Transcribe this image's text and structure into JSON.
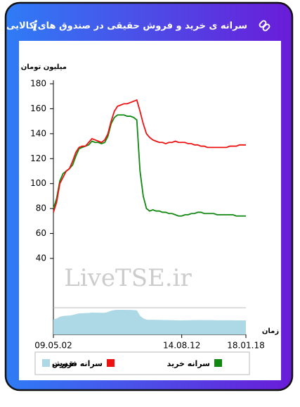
{
  "header": {
    "title": "سرانه ی خرید و فروش حقیقی در صندوق های کالایی",
    "info_icon": "i"
  },
  "chart_data": {
    "type": "line",
    "y_label": "میلیون تومان",
    "x_label": "زمان",
    "watermark": "LiveTSE.ir",
    "xlim": [
      0,
      60
    ],
    "xticks": [
      {
        "value": 0,
        "label": "09.05.02"
      },
      {
        "value": 40,
        "label": "14.08.12"
      },
      {
        "value": 60,
        "label": "18.01.18"
      }
    ],
    "ylim": [
      40,
      180
    ],
    "yticks": [
      40,
      60,
      80,
      100,
      120,
      140,
      160,
      180
    ],
    "series": [
      {
        "name": "سرانه خرید",
        "color": "#118811",
        "values": [
          80,
          88,
          102,
          108,
          110,
          112,
          115,
          122,
          128,
          129,
          130,
          131,
          134,
          133,
          133,
          132,
          133,
          138,
          148,
          153,
          155,
          155,
          155,
          154,
          154,
          153,
          151,
          110,
          90,
          80,
          78,
          79,
          78,
          78,
          77,
          77,
          76,
          76,
          75,
          74,
          74,
          75,
          75,
          76,
          76,
          77,
          77,
          76,
          76,
          76,
          76,
          75,
          75,
          75,
          75,
          75,
          75,
          74,
          74,
          74,
          74
        ]
      },
      {
        "name": "سرانه فروش",
        "color": "#ee1111",
        "values": [
          77,
          85,
          100,
          105,
          110,
          112,
          118,
          125,
          129,
          130,
          130,
          133,
          136,
          135,
          134,
          133,
          135,
          140,
          150,
          158,
          162,
          163,
          164,
          164,
          165,
          166,
          167,
          158,
          148,
          140,
          137,
          135,
          134,
          133,
          133,
          132,
          133,
          133,
          134,
          133,
          133,
          133,
          132,
          132,
          131,
          131,
          130,
          130,
          129,
          129,
          129,
          129,
          129,
          129,
          129,
          130,
          130,
          130,
          131,
          131,
          131
        ]
      },
      {
        "name": "قدرت",
        "color": "#add8e6"
      }
    ]
  }
}
